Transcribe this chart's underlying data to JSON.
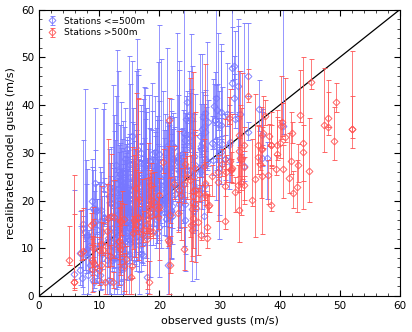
{
  "title": "",
  "xlabel": "observed gusts (m/s)",
  "ylabel": "recalibrated model gusts (m/s)",
  "xlim": [
    0,
    60
  ],
  "ylim": [
    0,
    60
  ],
  "xticks": [
    0,
    10,
    20,
    30,
    40,
    50,
    60
  ],
  "yticks": [
    0,
    10,
    20,
    30,
    40,
    50,
    60
  ],
  "legend1_label": "Stations <=500m",
  "legend2_label": "Stations >500m",
  "color_blue": "#7777ff",
  "color_red": "#ff5555",
  "marker_size": 3.5,
  "seed": 7,
  "n_blue": 380,
  "n_red": 160,
  "background_color": "#ffffff",
  "fig_width": 4.12,
  "fig_height": 3.32,
  "dpi": 100
}
